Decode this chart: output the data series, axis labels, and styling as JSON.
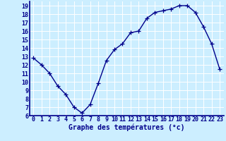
{
  "x": [
    0,
    1,
    2,
    3,
    4,
    5,
    6,
    7,
    8,
    9,
    10,
    11,
    12,
    13,
    14,
    15,
    16,
    17,
    18,
    19,
    20,
    21,
    22,
    23
  ],
  "y": [
    12.8,
    12.0,
    11.0,
    9.5,
    8.5,
    7.0,
    6.3,
    7.3,
    9.8,
    12.5,
    13.8,
    14.5,
    15.8,
    16.0,
    17.5,
    18.2,
    18.4,
    18.6,
    19.0,
    19.0,
    18.2,
    16.5,
    14.5,
    11.5
  ],
  "line_color": "#00008B",
  "marker": "+",
  "markersize": 4,
  "linewidth": 1.0,
  "bg_color": "#cceeff",
  "grid_color": "#ffffff",
  "xlabel": "Graphe des températures (°c)",
  "xlabel_color": "#00008B",
  "xlabel_fontsize": 7,
  "tick_color": "#00008B",
  "tick_fontsize": 6,
  "ylim": [
    6,
    19.5
  ],
  "xlim": [
    -0.5,
    23.5
  ],
  "yticks": [
    6,
    7,
    8,
    9,
    10,
    11,
    12,
    13,
    14,
    15,
    16,
    17,
    18,
    19
  ],
  "xticks": [
    0,
    1,
    2,
    3,
    4,
    5,
    6,
    7,
    8,
    9,
    10,
    11,
    12,
    13,
    14,
    15,
    16,
    17,
    18,
    19,
    20,
    21,
    22,
    23
  ]
}
